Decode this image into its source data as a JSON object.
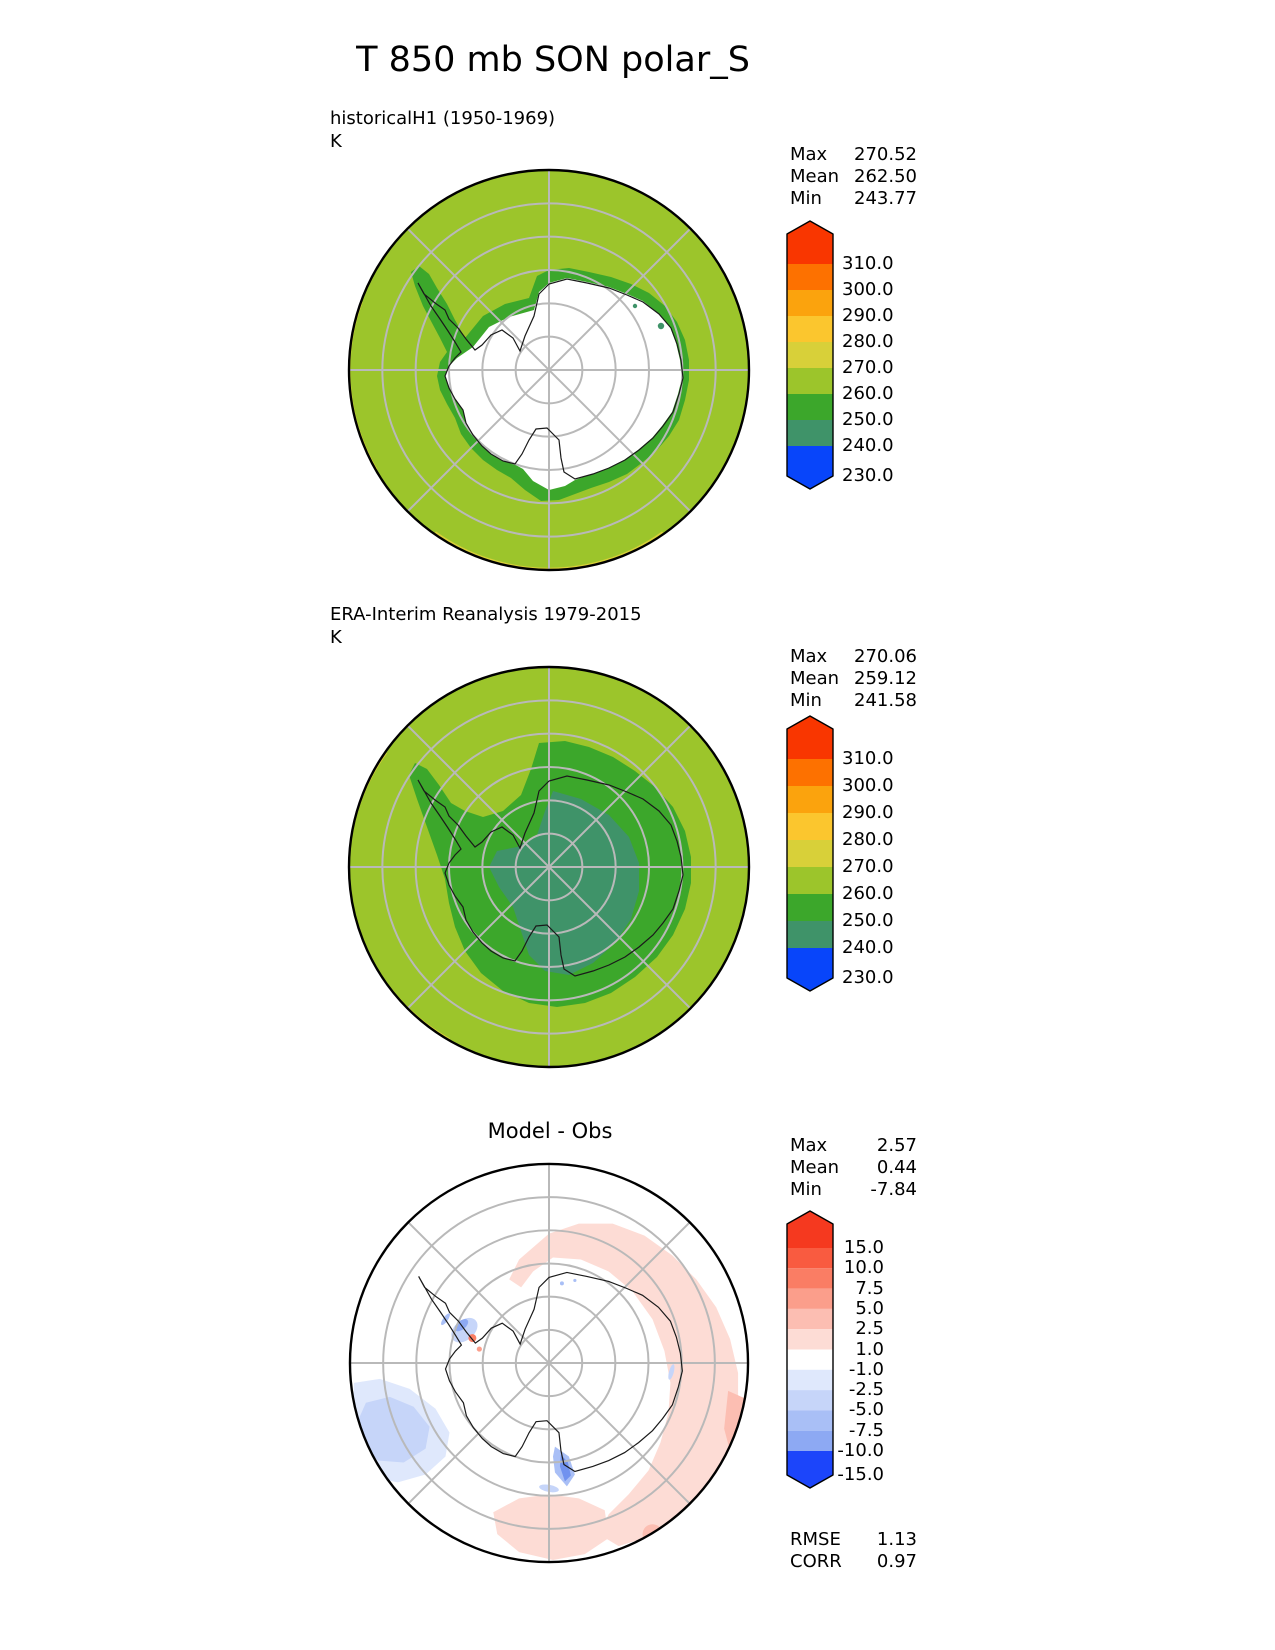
{
  "title": "T 850 mb SON polar_S",
  "colors": {
    "page_bg": "#ffffff",
    "grid": "#b9b9b9",
    "coast": "#1a1a1a",
    "map_outline": "#000000"
  },
  "panels": [
    {
      "id": "model",
      "label": "historicalH1 (1950-1969)",
      "units": "K",
      "stats": [
        {
          "label": "Max",
          "value": "270.52"
        },
        {
          "label": "Mean",
          "value": "262.50"
        },
        {
          "label": "Min",
          "value": "243.77"
        }
      ],
      "colorbar": {
        "tick_labels": [
          "310.0",
          "300.0",
          "290.0",
          "280.0",
          "270.0",
          "260.0",
          "250.0",
          "240.0",
          "230.0"
        ],
        "band_colors": [
          "#f93600",
          "#fd7100",
          "#fba30d",
          "#fbc62e",
          "#d8d039",
          "#9cc52b",
          "#3ca72b",
          "#3f9369",
          "#0b73ac",
          "#0845fa"
        ]
      }
    },
    {
      "id": "obs",
      "label": "ERA-Interim Reanalysis 1979-2015",
      "units": "K",
      "stats": [
        {
          "label": "Max",
          "value": "270.06"
        },
        {
          "label": "Mean",
          "value": "259.12"
        },
        {
          "label": "Min",
          "value": "241.58"
        }
      ],
      "colorbar": {
        "tick_labels": [
          "310.0",
          "300.0",
          "290.0",
          "280.0",
          "270.0",
          "260.0",
          "250.0",
          "240.0",
          "230.0"
        ],
        "band_colors": [
          "#f93600",
          "#fd7100",
          "#fba30d",
          "#fbc62e",
          "#d8d039",
          "#9cc52b",
          "#3ca72b",
          "#3f9369",
          "#0b73ac",
          "#0845fa"
        ]
      }
    },
    {
      "id": "diff",
      "label": "Model - Obs",
      "stats": [
        {
          "label": "Max",
          "value": "2.57"
        },
        {
          "label": "Mean",
          "value": "0.44"
        },
        {
          "label": "Min",
          "value": "-7.84"
        }
      ],
      "colorbar": {
        "tick_labels": [
          "15.0",
          "10.0",
          "7.5",
          "5.0",
          "2.5",
          "1.0",
          "-1.0",
          "-2.5",
          "-5.0",
          "-7.5",
          "-10.0",
          "-15.0"
        ],
        "band_colors": [
          "#f5391f",
          "#f95b40",
          "#fa7d64",
          "#fb9e8b",
          "#fcbeb2",
          "#fddcd5",
          "#ffffff",
          "#dfe8fc",
          "#c6d5f9",
          "#a9bff6",
          "#8da9f3",
          "#7192ef",
          "#1c45fa"
        ]
      },
      "metrics": [
        {
          "label": "RMSE",
          "value": "1.13"
        },
        {
          "label": "CORR",
          "value": "0.97"
        }
      ]
    }
  ],
  "chart_data": [
    {
      "type": "heatmap",
      "title": "historicalH1 (1950-1969)",
      "units": "K",
      "projection": "south polar stereographic",
      "levels": [
        230.0,
        240.0,
        250.0,
        260.0,
        270.0,
        280.0,
        290.0,
        300.0,
        310.0
      ],
      "stats": {
        "max": 270.52,
        "mean": 262.5,
        "min": 243.77
      }
    },
    {
      "type": "heatmap",
      "title": "ERA-Interim Reanalysis 1979-2015",
      "units": "K",
      "projection": "south polar stereographic",
      "levels": [
        230.0,
        240.0,
        250.0,
        260.0,
        270.0,
        280.0,
        290.0,
        300.0,
        310.0
      ],
      "stats": {
        "max": 270.06,
        "mean": 259.12,
        "min": 241.58
      }
    },
    {
      "type": "heatmap",
      "title": "Model - Obs",
      "units": "K",
      "projection": "south polar stereographic",
      "levels": [
        -15.0,
        -10.0,
        -7.5,
        -5.0,
        -2.5,
        -1.0,
        1.0,
        2.5,
        5.0,
        7.5,
        10.0,
        15.0
      ],
      "stats": {
        "max": 2.57,
        "mean": 0.44,
        "min": -7.84
      },
      "metrics": {
        "rmse": 1.13,
        "corr": 0.97
      }
    }
  ]
}
